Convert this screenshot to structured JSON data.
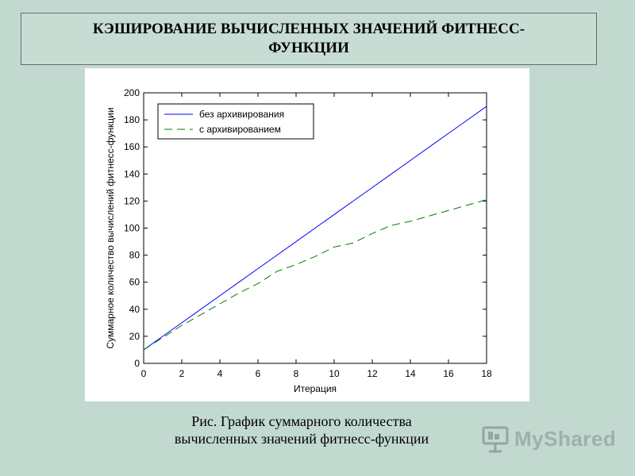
{
  "slide": {
    "title": "КЭШИРОВАНИЕ ВЫЧИСЛЕННЫХ ЗНАЧЕНИЙ ФИТНЕСС-ФУНКЦИИ",
    "caption_line1": "Рис. График суммарного количества",
    "caption_line2": "вычисленных значений фитнесс-функции"
  },
  "watermark": {
    "text": "MyShared",
    "icon": "presentation-board-icon"
  },
  "chart_data": {
    "type": "line",
    "title": "",
    "xlabel": "Итерация",
    "ylabel": "Суммарное количество вычислений фитнесс-функции",
    "xlim": [
      0,
      18
    ],
    "ylim": [
      0,
      200
    ],
    "xticks": [
      0,
      2,
      4,
      6,
      8,
      10,
      12,
      14,
      16,
      18
    ],
    "yticks": [
      0,
      20,
      40,
      60,
      80,
      100,
      120,
      140,
      160,
      180,
      200
    ],
    "grid": false,
    "legend_position": "top-left",
    "series": [
      {
        "name": "без архивирования",
        "color": "#0000ff",
        "dash": "solid",
        "x": [
          0,
          1,
          2,
          3,
          4,
          5,
          6,
          7,
          8,
          9,
          10,
          11,
          12,
          13,
          14,
          15,
          16,
          17,
          18
        ],
        "y": [
          10,
          20,
          30,
          40,
          50,
          60,
          70,
          80,
          90,
          100,
          110,
          120,
          130,
          140,
          150,
          160,
          170,
          180,
          190
        ]
      },
      {
        "name": "с архивированием",
        "color": "#008000",
        "dash": "dashed",
        "x": [
          0,
          1,
          2,
          3,
          4,
          5,
          6,
          7,
          8,
          9,
          10,
          11,
          12,
          13,
          14,
          15,
          16,
          17,
          18
        ],
        "y": [
          10,
          19,
          28,
          36,
          44,
          52,
          59,
          68,
          73,
          79,
          86,
          89,
          96,
          102,
          105,
          109,
          113,
          117,
          121
        ]
      }
    ]
  }
}
